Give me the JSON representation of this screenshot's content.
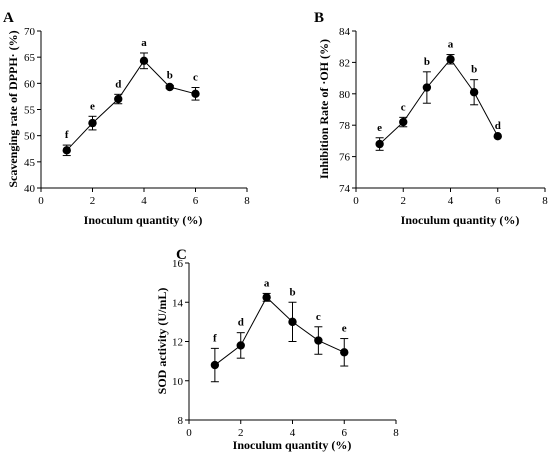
{
  "chart_data": [
    {
      "type": "line",
      "panel": "A",
      "xlabel": "Inoculum quantity (%)",
      "ylabel": "Scavenging rate of DPPH· (%)",
      "xlim": [
        0,
        8
      ],
      "ylim": [
        40,
        70
      ],
      "xticks": [
        "0",
        "2",
        "4",
        "6",
        "8"
      ],
      "yticks": [
        "40",
        "45",
        "50",
        "55",
        "60",
        "65",
        "70"
      ],
      "x": [
        1,
        2,
        3,
        4,
        5,
        6
      ],
      "y": [
        47.2,
        52.4,
        57.0,
        64.3,
        59.3,
        58.0
      ],
      "error": [
        1.0,
        1.3,
        0.9,
        1.5,
        0.3,
        1.2
      ],
      "labels": [
        "f",
        "e",
        "d",
        "a",
        "b",
        "c"
      ],
      "grid": false
    },
    {
      "type": "line",
      "panel": "B",
      "xlabel": "Inoculum quantity (%)",
      "ylabel": "Inhibition Rate of ·OH (%)",
      "xlim": [
        0,
        8
      ],
      "ylim": [
        74,
        84
      ],
      "xticks": [
        "0",
        "2",
        "4",
        "6",
        "8"
      ],
      "yticks": [
        "74",
        "76",
        "78",
        "80",
        "82",
        "84"
      ],
      "x": [
        1,
        2,
        3,
        4,
        5,
        6
      ],
      "y": [
        76.8,
        78.2,
        80.4,
        82.2,
        80.1,
        77.3
      ],
      "error": [
        0.4,
        0.3,
        1.0,
        0.3,
        0.8,
        0.0
      ],
      "labels": [
        "e",
        "c",
        "b",
        "a",
        "b",
        "d"
      ],
      "grid": false
    },
    {
      "type": "line",
      "panel": "C",
      "xlabel": "Inoculum quantity (%)",
      "ylabel": "SOD activity (U/mL)",
      "xlim": [
        0,
        8
      ],
      "ylim": [
        8,
        16
      ],
      "xticks": [
        "0",
        "2",
        "4",
        "6",
        "8"
      ],
      "yticks": [
        "8",
        "10",
        "12",
        "14",
        "16"
      ],
      "x": [
        1,
        2,
        3,
        4,
        5,
        6
      ],
      "y": [
        10.8,
        11.8,
        14.25,
        13.0,
        12.05,
        11.45
      ],
      "error": [
        0.85,
        0.65,
        0.2,
        1.0,
        0.7,
        0.7
      ],
      "labels": [
        "f",
        "d",
        "a",
        "b",
        "c",
        "e"
      ],
      "grid": false
    }
  ]
}
